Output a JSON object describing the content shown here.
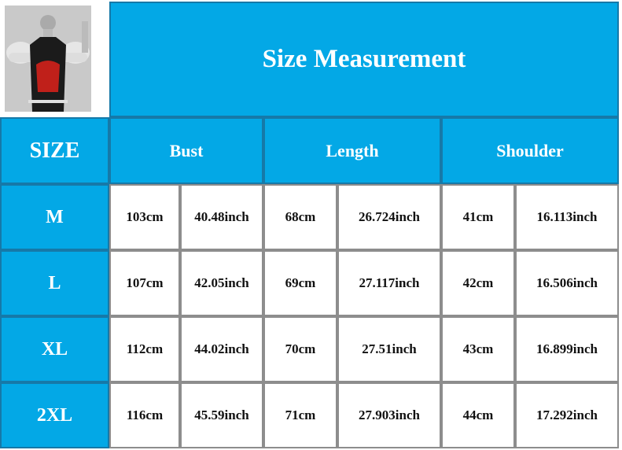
{
  "title": "Size Measurement",
  "headers": {
    "size": "SIZE",
    "bust": "Bust",
    "length": "Length",
    "shoulder": "Shoulder"
  },
  "colors": {
    "header_bg": "#03a8e6",
    "cell_bg": "#ffffff"
  },
  "rows": [
    {
      "size": "M",
      "bust_cm": "103cm",
      "bust_in": "40.48inch",
      "length_cm": "68cm",
      "length_in": "26.724inch",
      "shoulder_cm": "41cm",
      "shoulder_in": "16.113inch"
    },
    {
      "size": "L",
      "bust_cm": "107cm",
      "bust_in": "42.05inch",
      "length_cm": "69cm",
      "length_in": "27.117inch",
      "shoulder_cm": "42cm",
      "shoulder_in": "16.506inch"
    },
    {
      "size": "XL",
      "bust_cm": "112cm",
      "bust_in": "44.02inch",
      "length_cm": "70cm",
      "length_in": "27.51inch",
      "shoulder_cm": "43cm",
      "shoulder_in": "16.899inch"
    },
    {
      "size": "2XL",
      "bust_cm": "116cm",
      "bust_in": "45.59inch",
      "length_cm": "71cm",
      "length_in": "27.903inch",
      "shoulder_cm": "44cm",
      "shoulder_in": "17.292inch"
    }
  ]
}
